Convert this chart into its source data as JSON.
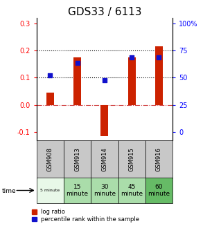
{
  "title": "GDS33 / 6113",
  "samples": [
    "GSM908",
    "GSM913",
    "GSM914",
    "GSM915",
    "GSM916"
  ],
  "time_labels": [
    "5 minute",
    "15\nminute",
    "30\nminute",
    "45\nminute",
    "60\nminute"
  ],
  "log_ratios": [
    0.045,
    0.175,
    -0.115,
    0.175,
    0.215
  ],
  "percentile_ranks": [
    0.11,
    0.155,
    0.09,
    0.175,
    0.175
  ],
  "ylim": [
    -0.13,
    0.32
  ],
  "yticks_left": [
    -0.1,
    0.0,
    0.1,
    0.2,
    0.3
  ],
  "yticks_right_vals": [
    0,
    25,
    50,
    75,
    100
  ],
  "right_tick_positions": [
    -0.1,
    -0.0,
    0.1,
    0.2,
    0.3
  ],
  "bar_color": "#cc2200",
  "dot_color": "#1111cc",
  "title_fontsize": 11,
  "cell_colors_gsm": [
    "#c8c8c8",
    "#c8c8c8",
    "#c8c8c8",
    "#c8c8c8",
    "#c8c8c8"
  ],
  "cell_colors_time": [
    "#e8f8e8",
    "#aaddaa",
    "#aaddaa",
    "#aaddaa",
    "#66bb66"
  ],
  "legend_fontsize": 6
}
